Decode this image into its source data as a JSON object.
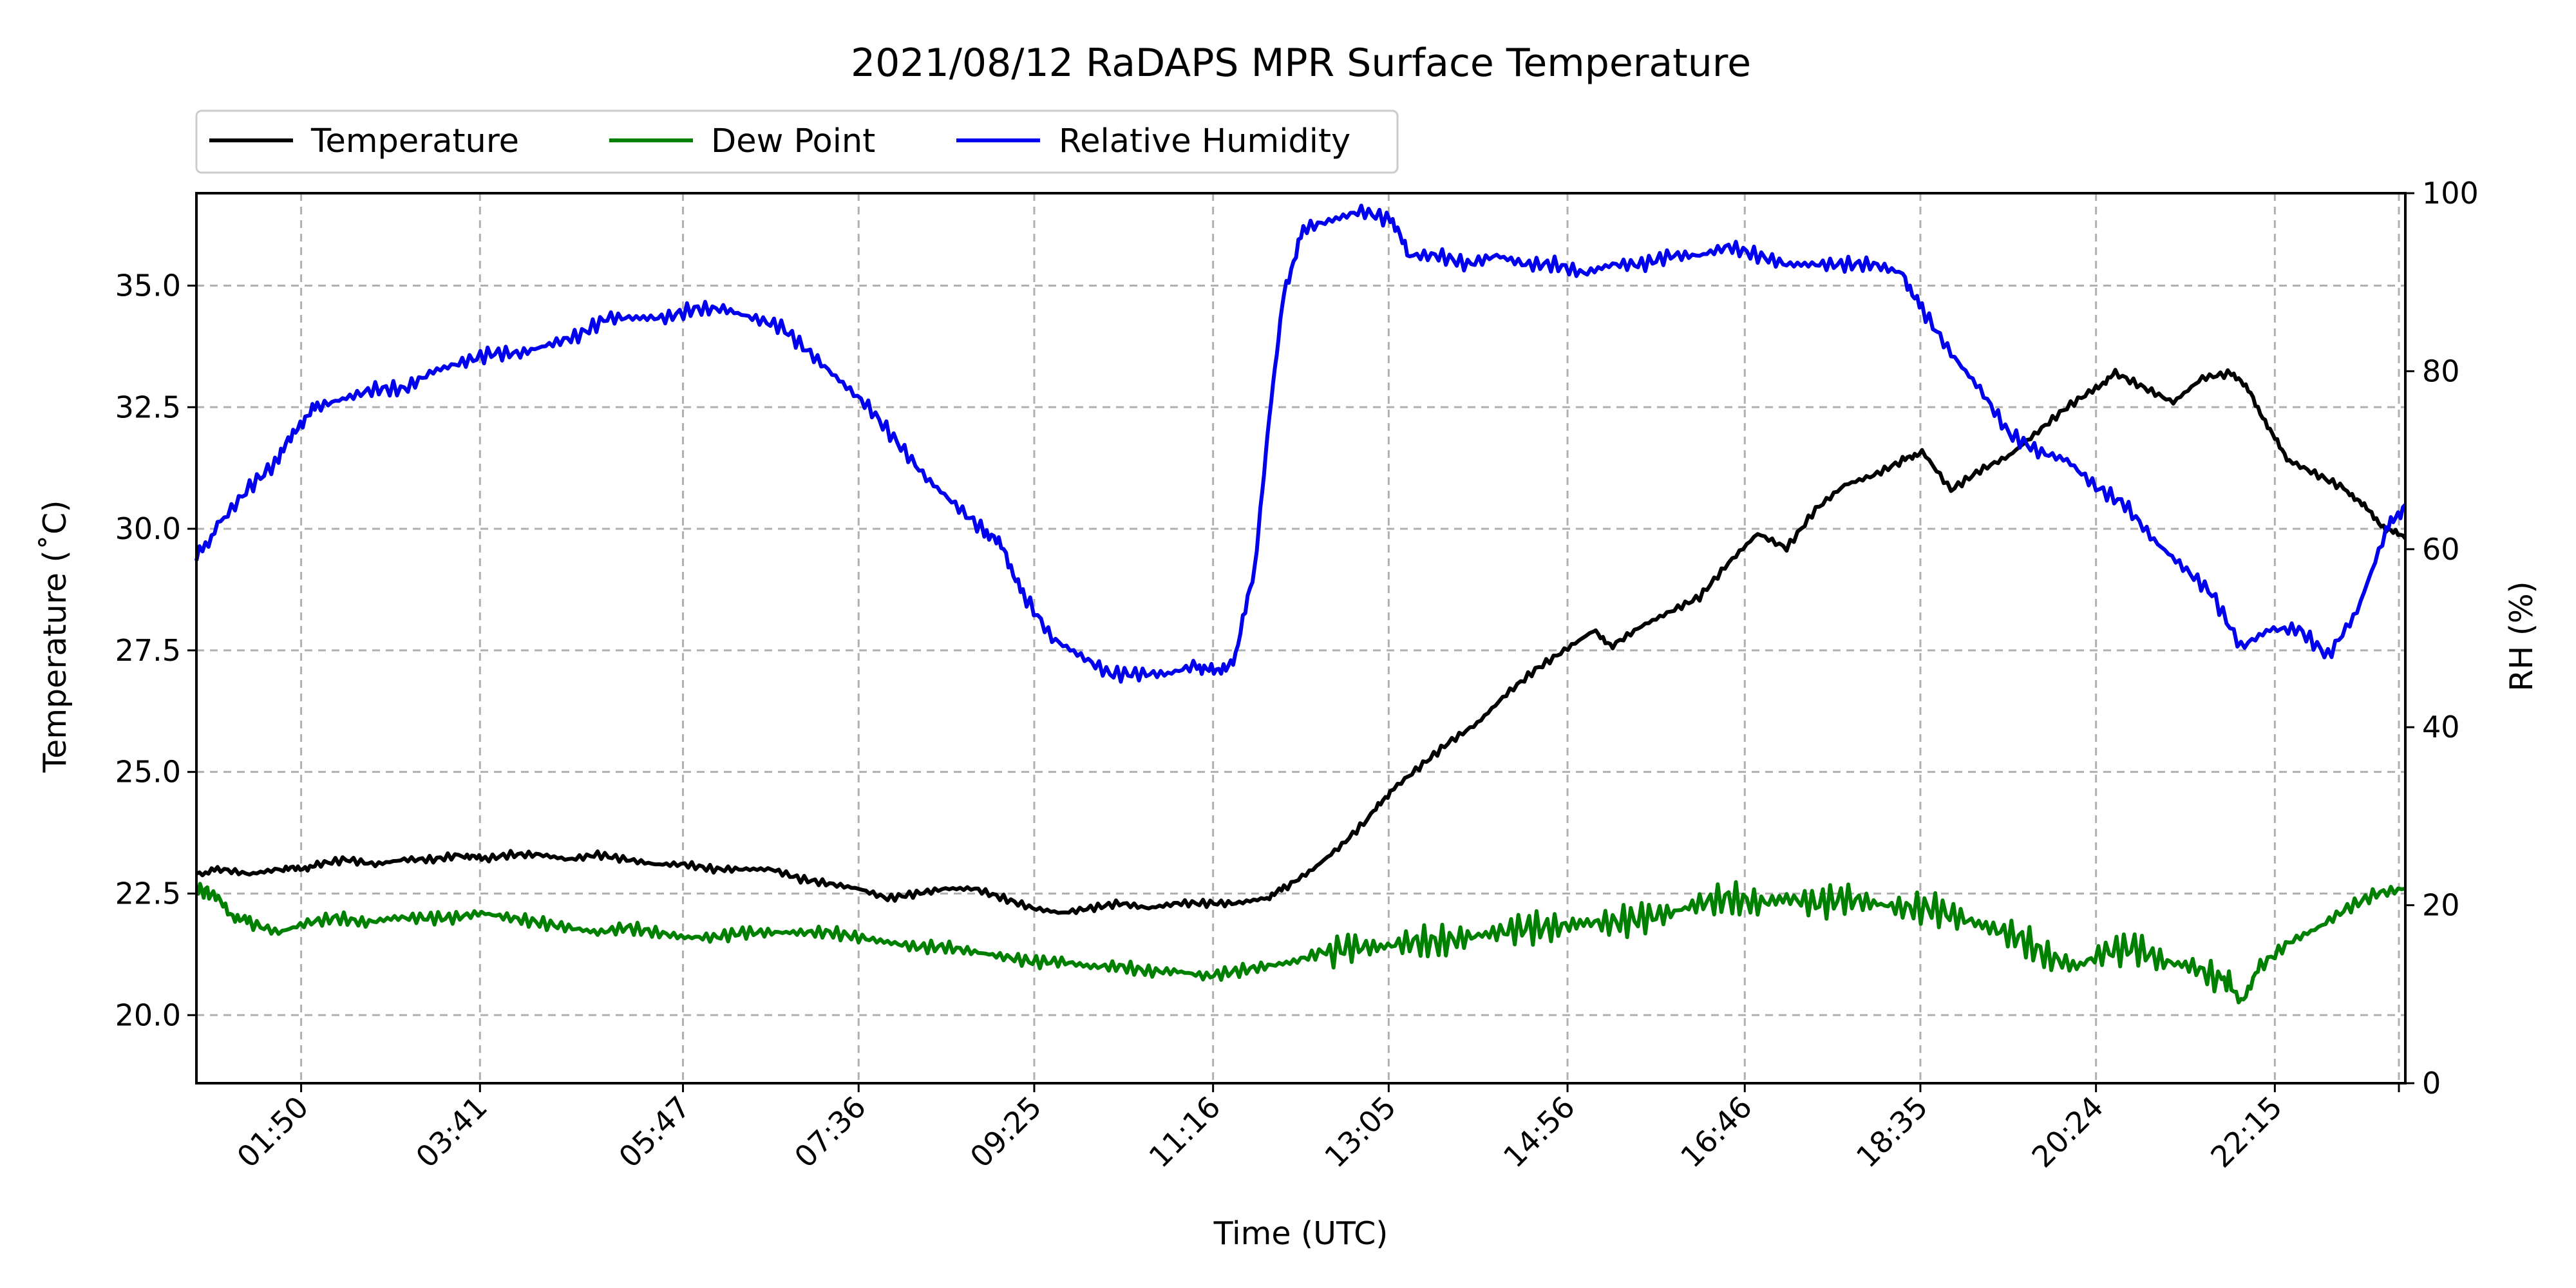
{
  "chart_data": {
    "type": "line",
    "title": "2021/08/12 RaDAPS MPR Surface Temperature",
    "xlabel": "Time (UTC)",
    "ylabel_left": "Temperature (˚C)",
    "ylabel_right": "RH (%)",
    "x_unit": "hours UTC",
    "xlim": [
      0.75,
      23.6
    ],
    "ylim_left": [
      18.6,
      36.9
    ],
    "ylim_right": [
      0,
      100
    ],
    "x_ticks": [
      {
        "label": "01:50",
        "value": 1.8333
      },
      {
        "label": "03:41",
        "value": 3.6833
      },
      {
        "label": "05:47",
        "value": 5.7833
      },
      {
        "label": "07:36",
        "value": 7.6
      },
      {
        "label": "09:25",
        "value": 9.4167
      },
      {
        "label": "11:16",
        "value": 11.2667
      },
      {
        "label": "13:05",
        "value": 13.0833
      },
      {
        "label": "14:56",
        "value": 14.9333
      },
      {
        "label": "16:46",
        "value": 16.7667
      },
      {
        "label": "18:35",
        "value": 18.5833
      },
      {
        "label": "20:24",
        "value": 20.4
      },
      {
        "label": "22:15",
        "value": 22.25
      }
    ],
    "y_ticks_left": [
      {
        "label": "20.0",
        "value": 20.0
      },
      {
        "label": "22.5",
        "value": 22.5
      },
      {
        "label": "25.0",
        "value": 25.0
      },
      {
        "label": "27.5",
        "value": 27.5
      },
      {
        "label": "30.0",
        "value": 30.0
      },
      {
        "label": "32.5",
        "value": 32.5
      },
      {
        "label": "35.0",
        "value": 35.0
      }
    ],
    "y_ticks_right": [
      {
        "label": "0",
        "value": 0
      },
      {
        "label": "20",
        "value": 20
      },
      {
        "label": "40",
        "value": 40
      },
      {
        "label": "60",
        "value": 60
      },
      {
        "label": "80",
        "value": 80
      },
      {
        "label": "100",
        "value": 100
      }
    ],
    "grid": true,
    "legend_position": "top-left, above plot",
    "series": [
      {
        "name": "Temperature",
        "axis": "left",
        "color": "#000000",
        "points": [
          [
            0.75,
            22.9
          ],
          [
            1.0,
            23.0
          ],
          [
            1.3,
            22.9
          ],
          [
            1.6,
            23.0
          ],
          [
            1.8,
            23.0
          ],
          [
            2.0,
            23.1
          ],
          [
            2.3,
            23.2
          ],
          [
            2.6,
            23.1
          ],
          [
            2.9,
            23.2
          ],
          [
            3.2,
            23.2
          ],
          [
            3.5,
            23.3
          ],
          [
            3.7,
            23.2
          ],
          [
            4.0,
            23.3
          ],
          [
            4.3,
            23.3
          ],
          [
            4.6,
            23.2
          ],
          [
            4.9,
            23.3
          ],
          [
            5.2,
            23.2
          ],
          [
            5.5,
            23.1
          ],
          [
            5.8,
            23.1
          ],
          [
            6.1,
            23.0
          ],
          [
            6.4,
            23.0
          ],
          [
            6.7,
            23.0
          ],
          [
            7.0,
            22.8
          ],
          [
            7.3,
            22.7
          ],
          [
            7.6,
            22.6
          ],
          [
            7.9,
            22.4
          ],
          [
            8.2,
            22.5
          ],
          [
            8.5,
            22.6
          ],
          [
            8.8,
            22.6
          ],
          [
            9.1,
            22.4
          ],
          [
            9.4,
            22.2
          ],
          [
            9.7,
            22.1
          ],
          [
            10.0,
            22.2
          ],
          [
            10.3,
            22.3
          ],
          [
            10.6,
            22.2
          ],
          [
            10.9,
            22.3
          ],
          [
            11.2,
            22.3
          ],
          [
            11.5,
            22.3
          ],
          [
            11.8,
            22.4
          ],
          [
            12.0,
            22.6
          ],
          [
            12.3,
            23.0
          ],
          [
            12.6,
            23.5
          ],
          [
            12.9,
            24.1
          ],
          [
            13.1,
            24.6
          ],
          [
            13.4,
            25.1
          ],
          [
            13.7,
            25.6
          ],
          [
            14.0,
            26.0
          ],
          [
            14.3,
            26.6
          ],
          [
            14.6,
            27.1
          ],
          [
            14.9,
            27.5
          ],
          [
            15.2,
            27.9
          ],
          [
            15.4,
            27.6
          ],
          [
            15.7,
            28.0
          ],
          [
            16.0,
            28.3
          ],
          [
            16.3,
            28.6
          ],
          [
            16.6,
            29.3
          ],
          [
            16.9,
            29.9
          ],
          [
            17.2,
            29.6
          ],
          [
            17.5,
            30.4
          ],
          [
            17.8,
            30.9
          ],
          [
            18.1,
            31.1
          ],
          [
            18.4,
            31.4
          ],
          [
            18.6,
            31.6
          ],
          [
            18.9,
            30.8
          ],
          [
            19.2,
            31.2
          ],
          [
            19.5,
            31.5
          ],
          [
            19.8,
            32.0
          ],
          [
            20.1,
            32.5
          ],
          [
            20.4,
            32.9
          ],
          [
            20.6,
            33.2
          ],
          [
            20.9,
            32.9
          ],
          [
            21.2,
            32.6
          ],
          [
            21.5,
            33.1
          ],
          [
            21.8,
            33.2
          ],
          [
            22.0,
            32.8
          ],
          [
            22.2,
            32.0
          ],
          [
            22.4,
            31.4
          ],
          [
            22.7,
            31.1
          ],
          [
            23.0,
            30.8
          ],
          [
            23.2,
            30.4
          ],
          [
            23.4,
            30.0
          ],
          [
            23.6,
            29.8
          ]
        ]
      },
      {
        "name": "Dew Point",
        "axis": "left",
        "color": "#008000",
        "points": [
          [
            0.75,
            22.6
          ],
          [
            0.9,
            22.5
          ],
          [
            1.1,
            22.1
          ],
          [
            1.3,
            21.9
          ],
          [
            1.6,
            21.7
          ],
          [
            1.9,
            21.9
          ],
          [
            2.2,
            22.0
          ],
          [
            2.5,
            21.9
          ],
          [
            2.8,
            22.0
          ],
          [
            3.1,
            22.0
          ],
          [
            3.4,
            22.0
          ],
          [
            3.7,
            22.1
          ],
          [
            4.0,
            22.0
          ],
          [
            4.3,
            21.9
          ],
          [
            4.6,
            21.8
          ],
          [
            4.9,
            21.7
          ],
          [
            5.2,
            21.8
          ],
          [
            5.5,
            21.7
          ],
          [
            5.8,
            21.6
          ],
          [
            6.1,
            21.6
          ],
          [
            6.4,
            21.7
          ],
          [
            6.7,
            21.7
          ],
          [
            7.0,
            21.7
          ],
          [
            7.3,
            21.7
          ],
          [
            7.6,
            21.6
          ],
          [
            7.9,
            21.5
          ],
          [
            8.2,
            21.4
          ],
          [
            8.5,
            21.4
          ],
          [
            8.8,
            21.3
          ],
          [
            9.1,
            21.2
          ],
          [
            9.4,
            21.1
          ],
          [
            9.7,
            21.1
          ],
          [
            10.0,
            21.0
          ],
          [
            10.3,
            21.0
          ],
          [
            10.6,
            20.9
          ],
          [
            10.9,
            20.9
          ],
          [
            11.2,
            20.8
          ],
          [
            11.5,
            20.9
          ],
          [
            11.8,
            21.0
          ],
          [
            12.1,
            21.1
          ],
          [
            12.4,
            21.3
          ],
          [
            12.7,
            21.4
          ],
          [
            13.0,
            21.4
          ],
          [
            13.3,
            21.5
          ],
          [
            13.6,
            21.5
          ],
          [
            13.9,
            21.6
          ],
          [
            14.2,
            21.7
          ],
          [
            14.5,
            21.8
          ],
          [
            14.8,
            21.8
          ],
          [
            15.1,
            21.9
          ],
          [
            15.4,
            21.9
          ],
          [
            15.7,
            22.0
          ],
          [
            16.0,
            22.1
          ],
          [
            16.3,
            22.3
          ],
          [
            16.6,
            22.4
          ],
          [
            16.9,
            22.3
          ],
          [
            17.2,
            22.4
          ],
          [
            17.5,
            22.3
          ],
          [
            17.8,
            22.4
          ],
          [
            18.1,
            22.3
          ],
          [
            18.4,
            22.2
          ],
          [
            18.7,
            22.2
          ],
          [
            19.0,
            22.0
          ],
          [
            19.3,
            21.8
          ],
          [
            19.6,
            21.6
          ],
          [
            19.9,
            21.2
          ],
          [
            20.2,
            21.0
          ],
          [
            20.5,
            21.3
          ],
          [
            20.8,
            21.4
          ],
          [
            21.1,
            21.1
          ],
          [
            21.4,
            21.0
          ],
          [
            21.7,
            20.7
          ],
          [
            21.9,
            20.3
          ],
          [
            22.1,
            21.0
          ],
          [
            22.4,
            21.5
          ],
          [
            22.7,
            21.8
          ],
          [
            23.0,
            22.2
          ],
          [
            23.3,
            22.5
          ],
          [
            23.6,
            22.6
          ]
        ]
      },
      {
        "name": "Relative Humidity",
        "axis": "right",
        "color": "#0000ee",
        "points": [
          [
            0.75,
            59
          ],
          [
            1.0,
            63
          ],
          [
            1.3,
            67
          ],
          [
            1.6,
            70
          ],
          [
            1.8,
            74
          ],
          [
            2.0,
            76
          ],
          [
            2.3,
            77
          ],
          [
            2.6,
            78
          ],
          [
            2.9,
            78
          ],
          [
            3.2,
            80
          ],
          [
            3.5,
            81
          ],
          [
            3.8,
            82
          ],
          [
            4.1,
            82
          ],
          [
            4.4,
            83
          ],
          [
            4.7,
            84
          ],
          [
            5.0,
            86
          ],
          [
            5.3,
            86
          ],
          [
            5.6,
            86
          ],
          [
            5.9,
            87
          ],
          [
            6.2,
            87
          ],
          [
            6.5,
            86
          ],
          [
            6.8,
            85
          ],
          [
            7.1,
            82
          ],
          [
            7.4,
            79
          ],
          [
            7.7,
            76
          ],
          [
            8.0,
            72
          ],
          [
            8.3,
            68
          ],
          [
            8.6,
            65
          ],
          [
            8.9,
            62
          ],
          [
            9.1,
            60
          ],
          [
            9.3,
            55
          ],
          [
            9.6,
            50
          ],
          [
            9.9,
            48
          ],
          [
            10.2,
            46
          ],
          [
            10.5,
            46
          ],
          [
            10.8,
            46
          ],
          [
            11.1,
            47
          ],
          [
            11.3,
            46
          ],
          [
            11.5,
            48
          ],
          [
            11.7,
            58
          ],
          [
            11.85,
            75
          ],
          [
            12.0,
            89
          ],
          [
            12.2,
            96
          ],
          [
            12.5,
            97
          ],
          [
            12.8,
            98
          ],
          [
            13.1,
            97
          ],
          [
            13.3,
            93
          ],
          [
            13.6,
            93
          ],
          [
            13.9,
            92
          ],
          [
            14.2,
            93
          ],
          [
            14.5,
            92
          ],
          [
            14.8,
            92
          ],
          [
            15.1,
            91
          ],
          [
            15.4,
            92
          ],
          [
            15.7,
            92
          ],
          [
            16.0,
            93
          ],
          [
            16.3,
            93
          ],
          [
            16.6,
            94
          ],
          [
            16.9,
            93
          ],
          [
            17.2,
            92
          ],
          [
            17.5,
            92
          ],
          [
            17.8,
            92
          ],
          [
            18.1,
            92
          ],
          [
            18.4,
            91
          ],
          [
            18.6,
            87
          ],
          [
            18.9,
            82
          ],
          [
            19.2,
            78
          ],
          [
            19.5,
            73
          ],
          [
            19.8,
            71
          ],
          [
            20.1,
            70
          ],
          [
            20.4,
            67
          ],
          [
            20.7,
            65
          ],
          [
            21.0,
            61
          ],
          [
            21.3,
            58
          ],
          [
            21.6,
            55
          ],
          [
            21.9,
            49
          ],
          [
            22.2,
            51
          ],
          [
            22.5,
            51
          ],
          [
            22.8,
            48
          ],
          [
            23.1,
            53
          ],
          [
            23.4,
            62
          ],
          [
            23.6,
            65
          ]
        ]
      }
    ]
  }
}
